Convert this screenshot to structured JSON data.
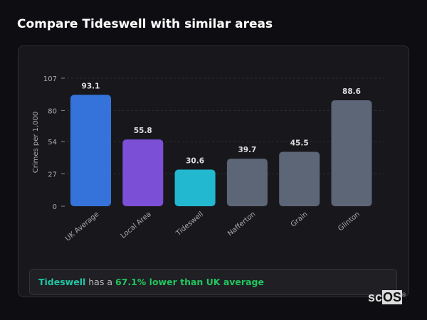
{
  "title": "Compare Tideswell with similar areas",
  "chart_data": {
    "type": "bar",
    "title": "",
    "xlabel": "",
    "ylabel": "Crimes per 1,000",
    "ylim": [
      0,
      107
    ],
    "yticks": [
      0,
      27,
      54,
      80,
      107
    ],
    "grid": "horizontal dashed",
    "categories": [
      "UK Average",
      "Local Area",
      "Tideswell",
      "Nafferton",
      "Grain",
      "Glinton"
    ],
    "values": [
      93.1,
      55.8,
      30.6,
      39.7,
      45.5,
      88.6
    ],
    "value_labels": [
      "93.1",
      "55.8",
      "30.6",
      "39.7",
      "45.5",
      "88.6"
    ],
    "colors": [
      "#3573db",
      "#7b4fd6",
      "#21b8d0",
      "#5d6677",
      "#5d6677",
      "#5d6677"
    ]
  },
  "summary": {
    "area": "Tideswell",
    "middle": " has a ",
    "comparison": "67.1% lower than UK average"
  },
  "logo": {
    "text_sc": "sc",
    "text_os": "OS",
    "mark": "®"
  }
}
